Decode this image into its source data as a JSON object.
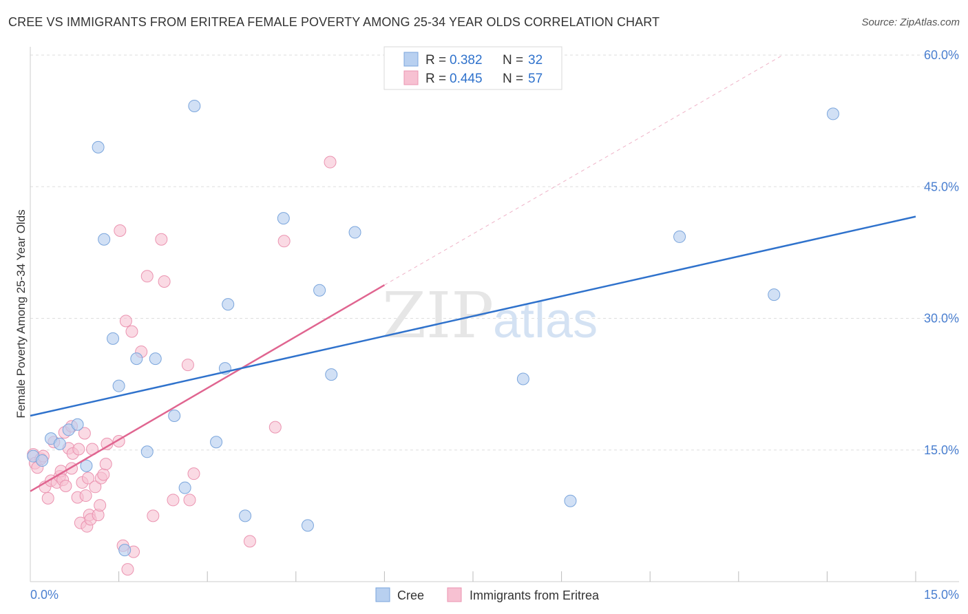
{
  "header": {
    "title": "CREE VS IMMIGRANTS FROM ERITREA FEMALE POVERTY AMONG 25-34 YEAR OLDS CORRELATION CHART",
    "source": "Source: ZipAtlas.com"
  },
  "watermark": {
    "zip": "ZIP",
    "atlas": "atlas"
  },
  "legend_top": {
    "rows": [
      {
        "r_label": "R =",
        "r_value": "0.382",
        "n_label": "N =",
        "n_value": "32"
      },
      {
        "r_label": "R =",
        "r_value": "0.445",
        "n_label": "N =",
        "n_value": "57"
      }
    ]
  },
  "colors": {
    "cree_fill": "#b8d0f0",
    "cree_stroke": "#7aa5dc",
    "cree_line": "#2f72cc",
    "eritrea_fill": "#f7c1d2",
    "eritrea_stroke": "#eb93b0",
    "eritrea_line": "#e06590",
    "tick_label": "#4a7fd0",
    "grid": "#dddddd"
  },
  "chart_data": {
    "type": "scatter",
    "title": "CREE VS IMMIGRANTS FROM ERITREA FEMALE POVERTY AMONG 25-34 YEAR OLDS CORRELATION CHART",
    "xlabel": "",
    "ylabel": "Female Poverty Among 25-34 Year Olds",
    "xlim": [
      0,
      15
    ],
    "ylim": [
      0,
      60
    ],
    "x_tick_labels": [
      "0.0%",
      "15.0%"
    ],
    "y_ticks": [
      15,
      30,
      45,
      60
    ],
    "y_tick_labels": [
      "15.0%",
      "30.0%",
      "45.0%",
      "60.0%"
    ],
    "grid": true,
    "legend_position": "top-center",
    "series": [
      {
        "name": "Cree",
        "r": 0.382,
        "n": 32,
        "points": [
          [
            0.05,
            14.3
          ],
          [
            0.2,
            13.8
          ],
          [
            0.35,
            16.3
          ],
          [
            0.5,
            15.7
          ],
          [
            0.65,
            17.3
          ],
          [
            0.8,
            17.9
          ],
          [
            0.95,
            13.2
          ],
          [
            1.15,
            49.5
          ],
          [
            1.25,
            39.0
          ],
          [
            1.4,
            27.7
          ],
          [
            1.5,
            22.3
          ],
          [
            1.6,
            3.6
          ],
          [
            1.8,
            25.4
          ],
          [
            1.98,
            14.8
          ],
          [
            2.12,
            25.4
          ],
          [
            2.44,
            18.9
          ],
          [
            2.62,
            10.7
          ],
          [
            2.78,
            54.2
          ],
          [
            3.15,
            15.9
          ],
          [
            3.3,
            24.3
          ],
          [
            3.35,
            31.6
          ],
          [
            3.64,
            7.5
          ],
          [
            4.29,
            41.4
          ],
          [
            4.7,
            6.4
          ],
          [
            4.9,
            33.2
          ],
          [
            5.1,
            23.6
          ],
          [
            5.5,
            39.8
          ],
          [
            8.35,
            23.1
          ],
          [
            9.15,
            9.2
          ],
          [
            11.0,
            39.3
          ],
          [
            12.6,
            32.7
          ],
          [
            13.6,
            53.3
          ]
        ],
        "trend": {
          "x": [
            0,
            15
          ],
          "y": [
            18.9,
            41.6
          ]
        }
      },
      {
        "name": "Immigrants from Eritrea",
        "r": 0.445,
        "n": 57,
        "points": [
          [
            0.05,
            14.5
          ],
          [
            0.08,
            13.5
          ],
          [
            0.12,
            13.0
          ],
          [
            0.18,
            14.0
          ],
          [
            0.22,
            14.3
          ],
          [
            0.25,
            10.8
          ],
          [
            0.3,
            9.5
          ],
          [
            0.35,
            11.5
          ],
          [
            0.4,
            15.9
          ],
          [
            0.45,
            11.3
          ],
          [
            0.5,
            12.0
          ],
          [
            0.52,
            12.6
          ],
          [
            0.55,
            11.6
          ],
          [
            0.58,
            17.0
          ],
          [
            0.6,
            10.9
          ],
          [
            0.65,
            15.2
          ],
          [
            0.7,
            17.7
          ],
          [
            0.7,
            12.9
          ],
          [
            0.72,
            14.6
          ],
          [
            0.8,
            9.6
          ],
          [
            0.82,
            15.1
          ],
          [
            0.85,
            6.7
          ],
          [
            0.88,
            11.3
          ],
          [
            0.92,
            16.9
          ],
          [
            0.94,
            9.8
          ],
          [
            0.96,
            6.3
          ],
          [
            0.98,
            11.8
          ],
          [
            1.0,
            7.6
          ],
          [
            1.02,
            7.1
          ],
          [
            1.05,
            15.1
          ],
          [
            1.1,
            10.8
          ],
          [
            1.15,
            7.6
          ],
          [
            1.18,
            8.7
          ],
          [
            1.2,
            11.8
          ],
          [
            1.24,
            12.2
          ],
          [
            1.28,
            13.4
          ],
          [
            1.3,
            15.7
          ],
          [
            1.5,
            16.0
          ],
          [
            1.52,
            40.0
          ],
          [
            1.57,
            4.1
          ],
          [
            1.65,
            1.4
          ],
          [
            1.75,
            3.4
          ],
          [
            1.88,
            26.2
          ],
          [
            1.98,
            34.8
          ],
          [
            2.08,
            7.5
          ],
          [
            2.22,
            39.0
          ],
          [
            2.27,
            34.2
          ],
          [
            2.42,
            9.3
          ],
          [
            2.67,
            24.7
          ],
          [
            2.7,
            9.3
          ],
          [
            2.77,
            12.3
          ],
          [
            3.72,
            4.6
          ],
          [
            4.15,
            17.6
          ],
          [
            4.3,
            38.8
          ],
          [
            5.08,
            47.8
          ],
          [
            1.62,
            29.7
          ],
          [
            1.72,
            28.5
          ]
        ],
        "trend": {
          "x": [
            0,
            6.0
          ],
          "y": [
            10.3,
            33.8
          ]
        },
        "trend_extension": {
          "x": [
            6.0,
            12.75
          ],
          "y": [
            33.8,
            60.0
          ]
        }
      }
    ]
  },
  "legend_bottom": {
    "items": [
      {
        "label": "Cree"
      },
      {
        "label": "Immigrants from Eritrea"
      }
    ]
  }
}
